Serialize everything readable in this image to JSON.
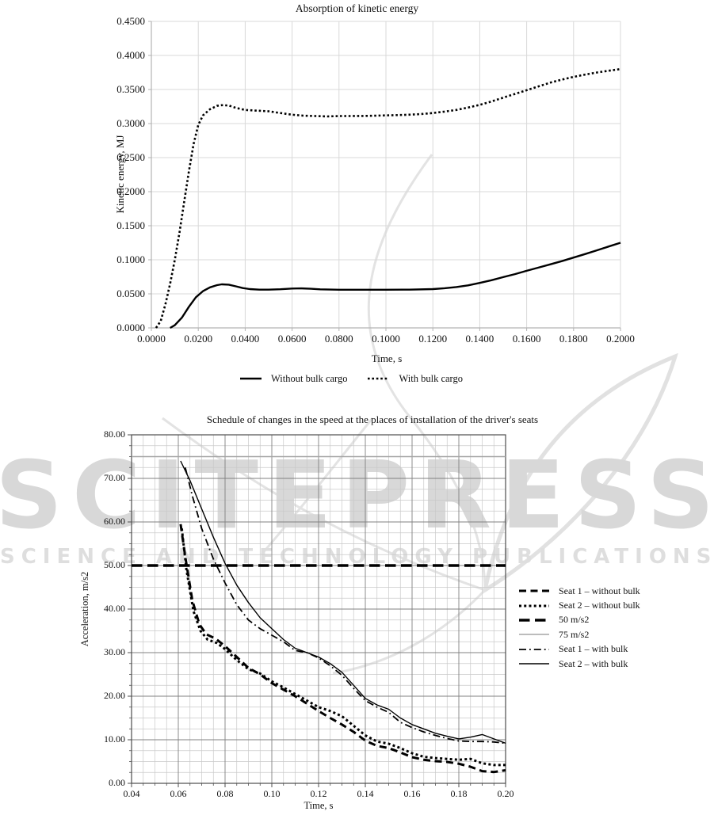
{
  "watermark": {
    "line1": "SCITEPRESS",
    "line2": "SCIENCE AND TECHNOLOGY PUBLICATIONS",
    "big_text_color": "#d8d8d8",
    "small_text_color": "#dedede",
    "swoosh_color": "#e3e3e3"
  },
  "chart_data": [
    {
      "type": "line",
      "title": "Absorption of kinetic energy",
      "xlabel": "Time, s",
      "ylabel": "Kinetic energy, MJ",
      "xlim": [
        0,
        0.2
      ],
      "ylim": [
        0,
        0.45
      ],
      "grid": "major",
      "grid_color": "#d9d9d9",
      "axis_color": "#b3b3b3",
      "legend_position": "bottom",
      "x_ticks": [
        0,
        0.02,
        0.04,
        0.06,
        0.08,
        0.1,
        0.12,
        0.14,
        0.16,
        0.18,
        0.2
      ],
      "x_tick_labels": [
        "0.0000",
        "0.0200",
        "0.0400",
        "0.0600",
        "0.0800",
        "0.1000",
        "0.1200",
        "0.1400",
        "0.1600",
        "0.1800",
        "0.2000"
      ],
      "y_ticks": [
        0,
        0.05,
        0.1,
        0.15,
        0.2,
        0.25,
        0.3,
        0.35,
        0.4,
        0.45
      ],
      "y_tick_labels": [
        "0.0000",
        "0.0500",
        "0.1000",
        "0.1500",
        "0.2000",
        "0.2500",
        "0.3000",
        "0.3500",
        "0.4000",
        "0.4500"
      ],
      "series": [
        {
          "name": "Without bulk cargo",
          "line": "solid",
          "color": "#000000",
          "width": 2.4,
          "x": [
            0.008,
            0.01,
            0.013,
            0.016,
            0.019,
            0.022,
            0.025,
            0.028,
            0.03,
            0.033,
            0.036,
            0.039,
            0.042,
            0.046,
            0.05,
            0.055,
            0.06,
            0.064,
            0.068,
            0.072,
            0.08,
            0.09,
            0.1,
            0.11,
            0.12,
            0.125,
            0.13,
            0.135,
            0.14,
            0.145,
            0.15,
            0.155,
            0.16,
            0.165,
            0.17,
            0.175,
            0.18,
            0.185,
            0.19,
            0.195,
            0.2
          ],
          "y": [
            0,
            0.004,
            0.015,
            0.031,
            0.045,
            0.054,
            0.0595,
            0.0628,
            0.064,
            0.0635,
            0.061,
            0.0585,
            0.057,
            0.0562,
            0.0562,
            0.0568,
            0.0578,
            0.058,
            0.0574,
            0.0566,
            0.056,
            0.056,
            0.056,
            0.0562,
            0.057,
            0.0582,
            0.06,
            0.0625,
            0.066,
            0.07,
            0.0745,
            0.079,
            0.0838,
            0.0885,
            0.0933,
            0.098,
            0.1033,
            0.1085,
            0.114,
            0.1195,
            0.125
          ]
        },
        {
          "name": "With bulk cargo",
          "line": "dotted",
          "color": "#000000",
          "width": 2.6,
          "x": [
            0.002,
            0.004,
            0.006,
            0.008,
            0.01,
            0.012,
            0.014,
            0.016,
            0.018,
            0.02,
            0.022,
            0.025,
            0.028,
            0.03,
            0.033,
            0.036,
            0.04,
            0.045,
            0.05,
            0.055,
            0.06,
            0.065,
            0.07,
            0.075,
            0.08,
            0.085,
            0.09,
            0.095,
            0.1,
            0.105,
            0.11,
            0.115,
            0.12,
            0.125,
            0.13,
            0.135,
            0.14,
            0.145,
            0.15,
            0.155,
            0.16,
            0.165,
            0.17,
            0.175,
            0.18,
            0.185,
            0.19,
            0.195,
            0.2
          ],
          "y": [
            0,
            0.01,
            0.035,
            0.065,
            0.1,
            0.14,
            0.185,
            0.23,
            0.27,
            0.298,
            0.312,
            0.321,
            0.326,
            0.327,
            0.3265,
            0.323,
            0.32,
            0.319,
            0.318,
            0.3155,
            0.313,
            0.3115,
            0.311,
            0.3105,
            0.311,
            0.311,
            0.3112,
            0.3115,
            0.312,
            0.3125,
            0.313,
            0.314,
            0.3155,
            0.3175,
            0.32,
            0.3235,
            0.3275,
            0.3325,
            0.338,
            0.3435,
            0.349,
            0.3545,
            0.36,
            0.3645,
            0.3685,
            0.372,
            0.375,
            0.3775,
            0.38
          ]
        }
      ]
    },
    {
      "type": "line",
      "title": "Schedule of changes in the speed at the places of installation of the driver's seats",
      "xlabel": "Time, s",
      "ylabel": "Acceleration, m/s2",
      "xlim": [
        0.04,
        0.2
      ],
      "ylim": [
        0,
        80
      ],
      "grid": "major+minor",
      "x_minor": 0.005,
      "y_minor": 2.5,
      "grid_major_color": "#808080",
      "grid_minor_color": "#c9c9c9",
      "border_color": "#4d4d4d",
      "legend_position": "right",
      "x_ticks": [
        0.04,
        0.06,
        0.08,
        0.1,
        0.12,
        0.14,
        0.16,
        0.18,
        0.2
      ],
      "x_tick_labels": [
        "0.04",
        "0.06",
        "0.08",
        "0.10",
        "0.12",
        "0.14",
        "0.16",
        "0.18",
        "0.20"
      ],
      "y_ticks": [
        0,
        10,
        20,
        30,
        40,
        50,
        60,
        70,
        80
      ],
      "y_tick_labels": [
        "0.00",
        "10.00",
        "20.00",
        "30.00",
        "40.00",
        "50.00",
        "60.00",
        "70.00",
        "80.00"
      ],
      "series": [
        {
          "name": "Seat 1 – without bulk",
          "line": "dashed",
          "color": "#000000",
          "width": 3,
          "x": [
            0.061,
            0.063,
            0.066,
            0.069,
            0.072,
            0.076,
            0.08,
            0.085,
            0.09,
            0.095,
            0.1,
            0.105,
            0.11,
            0.115,
            0.12,
            0.125,
            0.13,
            0.135,
            0.14,
            0.145,
            0.15,
            0.155,
            0.16,
            0.165,
            0.17,
            0.175,
            0.18,
            0.185,
            0.19,
            0.195,
            0.2
          ],
          "y": [
            59.5,
            52,
            42,
            36.5,
            34.2,
            33.2,
            31.5,
            29,
            26.5,
            25,
            23,
            21.5,
            20,
            18.3,
            16.6,
            15,
            13.5,
            11.8,
            9.8,
            8.6,
            8.1,
            7.1,
            6.0,
            5.4,
            5.1,
            4.9,
            4.5,
            3.8,
            2.8,
            2.6,
            3.0
          ]
        },
        {
          "name": "Seat 2 – without bulk",
          "line": "dotted",
          "color": "#000000",
          "width": 3,
          "x": [
            0.0615,
            0.0635,
            0.0665,
            0.0695,
            0.0725,
            0.0765,
            0.08,
            0.085,
            0.09,
            0.095,
            0.1,
            0.105,
            0.11,
            0.115,
            0.12,
            0.125,
            0.13,
            0.135,
            0.14,
            0.145,
            0.15,
            0.155,
            0.16,
            0.165,
            0.17,
            0.175,
            0.18,
            0.185,
            0.19,
            0.195,
            0.2
          ],
          "y": [
            58.5,
            49,
            39.5,
            35,
            33,
            32.2,
            30.8,
            28.3,
            26.2,
            25.2,
            23.4,
            22,
            20.5,
            19,
            17.5,
            16.6,
            15.4,
            13.2,
            11,
            9.6,
            9.1,
            8.1,
            6.9,
            6.1,
            5.8,
            5.6,
            5.4,
            5.6,
            4.6,
            4.2,
            4.2
          ]
        },
        {
          "name": "50 m/s2",
          "line": "longdash",
          "color": "#000000",
          "width": 3.6,
          "x": [
            0.04,
            0.2
          ],
          "y": [
            50,
            50
          ]
        },
        {
          "name": "75 m/s2",
          "line": "solid",
          "color": "#a6a6a6",
          "width": 1.4,
          "x": [
            0.04,
            0.2
          ],
          "y": [
            75,
            75
          ]
        },
        {
          "name": "Seat 1 – with bulk",
          "line": "dashdot",
          "color": "#000000",
          "width": 1.8,
          "x": [
            0.063,
            0.066,
            0.07,
            0.075,
            0.08,
            0.085,
            0.09,
            0.095,
            0.1,
            0.105,
            0.11,
            0.115,
            0.12,
            0.125,
            0.13,
            0.135,
            0.14,
            0.145,
            0.15,
            0.155,
            0.16,
            0.165,
            0.17,
            0.175,
            0.18,
            0.185,
            0.19,
            0.195,
            0.2
          ],
          "y": [
            72.5,
            66,
            58.5,
            51.5,
            46,
            41,
            37.5,
            35.5,
            34,
            32.5,
            30.5,
            30,
            28.8,
            27,
            24.8,
            21.8,
            19,
            17.5,
            16.3,
            14,
            12.8,
            11.8,
            11,
            10.3,
            9.7,
            9.6,
            9.6,
            9.5,
            9.2
          ]
        },
        {
          "name": "Seat 2 – with bulk",
          "line": "solid",
          "color": "#000000",
          "width": 1.4,
          "x": [
            0.061,
            0.065,
            0.07,
            0.075,
            0.08,
            0.085,
            0.09,
            0.095,
            0.1,
            0.105,
            0.11,
            0.115,
            0.12,
            0.125,
            0.13,
            0.135,
            0.14,
            0.145,
            0.15,
            0.155,
            0.16,
            0.165,
            0.17,
            0.175,
            0.18,
            0.185,
            0.19,
            0.195,
            0.2
          ],
          "y": [
            74,
            69.5,
            63,
            56.5,
            50.5,
            45.5,
            41.5,
            38,
            35.5,
            33,
            31,
            30,
            29,
            27.5,
            25.5,
            22.5,
            19.5,
            18,
            17,
            15,
            13.5,
            12.5,
            11.5,
            10.8,
            10.2,
            10.6,
            11.2,
            10.2,
            9.2
          ]
        }
      ]
    }
  ]
}
